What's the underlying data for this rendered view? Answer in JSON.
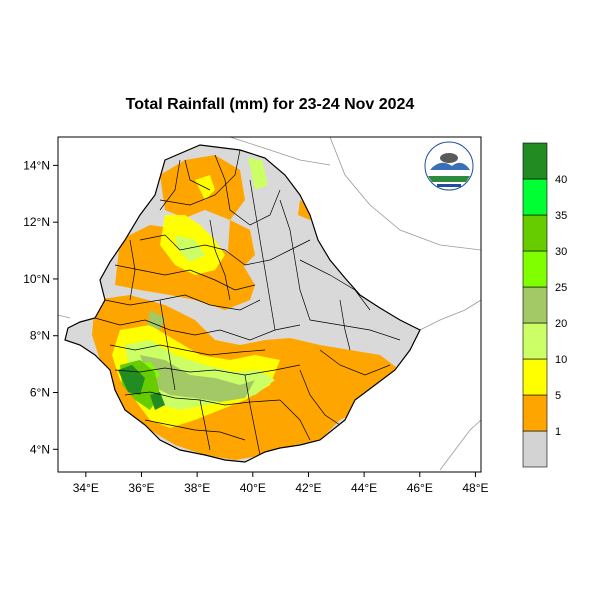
{
  "title": "Total Rainfall (mm) for 23-24 Nov 2024",
  "axes": {
    "x_ticks": [
      {
        "value": 34,
        "label": "34°E"
      },
      {
        "value": 36,
        "label": "36°E"
      },
      {
        "value": 38,
        "label": "38°E"
      },
      {
        "value": 40,
        "label": "40°E"
      },
      {
        "value": 42,
        "label": "42°E"
      },
      {
        "value": 44,
        "label": "44°E"
      },
      {
        "value": 46,
        "label": "46°E"
      },
      {
        "value": 48,
        "label": "48°E"
      }
    ],
    "y_ticks": [
      {
        "value": 4,
        "label": "4°N"
      },
      {
        "value": 6,
        "label": "6°N"
      },
      {
        "value": 8,
        "label": "8°N"
      },
      {
        "value": 10,
        "label": "10°N"
      },
      {
        "value": 12,
        "label": "12°N"
      },
      {
        "value": 14,
        "label": "14°N"
      }
    ],
    "lon_range": [
      33,
      48.2
    ],
    "lat_range": [
      3.2,
      15
    ]
  },
  "colorbar": {
    "levels": [
      {
        "label": "",
        "color": "#d3d3d3"
      },
      {
        "label": "1",
        "color": "#ffa500"
      },
      {
        "label": "5",
        "color": "#ffff00"
      },
      {
        "label": "10",
        "color": "#ccff66"
      },
      {
        "label": "20",
        "color": "#a3c866"
      },
      {
        "label": "25",
        "color": "#80ff00"
      },
      {
        "label": "30",
        "color": "#66cc00"
      },
      {
        "label": "35",
        "color": "#00ff33"
      },
      {
        "label": "40",
        "color": "#228b22"
      }
    ]
  },
  "logo": {
    "name": "ethiopian-meteorology-logo"
  }
}
